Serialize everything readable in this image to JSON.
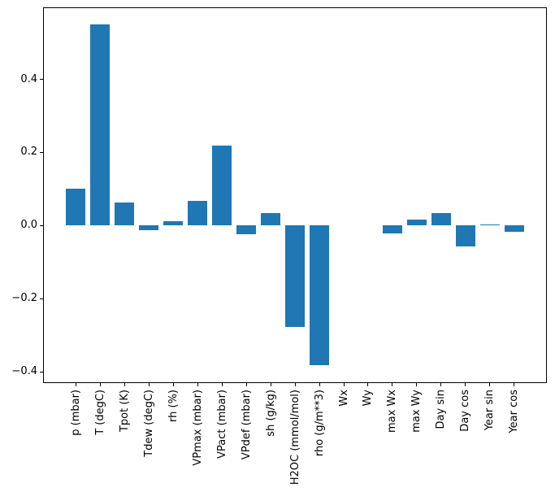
{
  "chart_data": {
    "type": "bar",
    "categories": [
      "p (mbar)",
      "T (degC)",
      "Tpot (K)",
      "Tdew (degC)",
      "rh (%)",
      "VPmax (mbar)",
      "VPact (mbar)",
      "VPdef (mbar)",
      "sh (g/kg)",
      "H2OC (mmol/mol)",
      "rho (g/m**3)",
      "Wx",
      "Wy",
      "max Wx",
      "max Wy",
      "Day sin",
      "Day cos",
      "Year sin",
      "Year cos"
    ],
    "values": [
      0.1,
      0.551,
      0.063,
      -0.012,
      0.013,
      0.067,
      0.219,
      -0.023,
      0.035,
      -0.278,
      -0.383,
      0.0,
      0.0,
      -0.022,
      0.016,
      0.034,
      -0.057,
      0.003,
      -0.018
    ],
    "yticks": [
      -0.4,
      -0.2,
      0.0,
      0.2,
      0.4
    ],
    "ytick_labels": [
      "−0.4",
      "−0.2",
      "0.0",
      "0.2",
      "0.4"
    ],
    "ylim": [
      -0.431,
      0.597
    ],
    "xlim": [
      -1.34,
      19.34
    ],
    "bar_width": 0.8,
    "x_tick_label_rotation": 90,
    "grid": false,
    "colors": {
      "bar": "#1f77b4",
      "axis": "#000000",
      "text": "#000000",
      "background": "#ffffff"
    }
  }
}
